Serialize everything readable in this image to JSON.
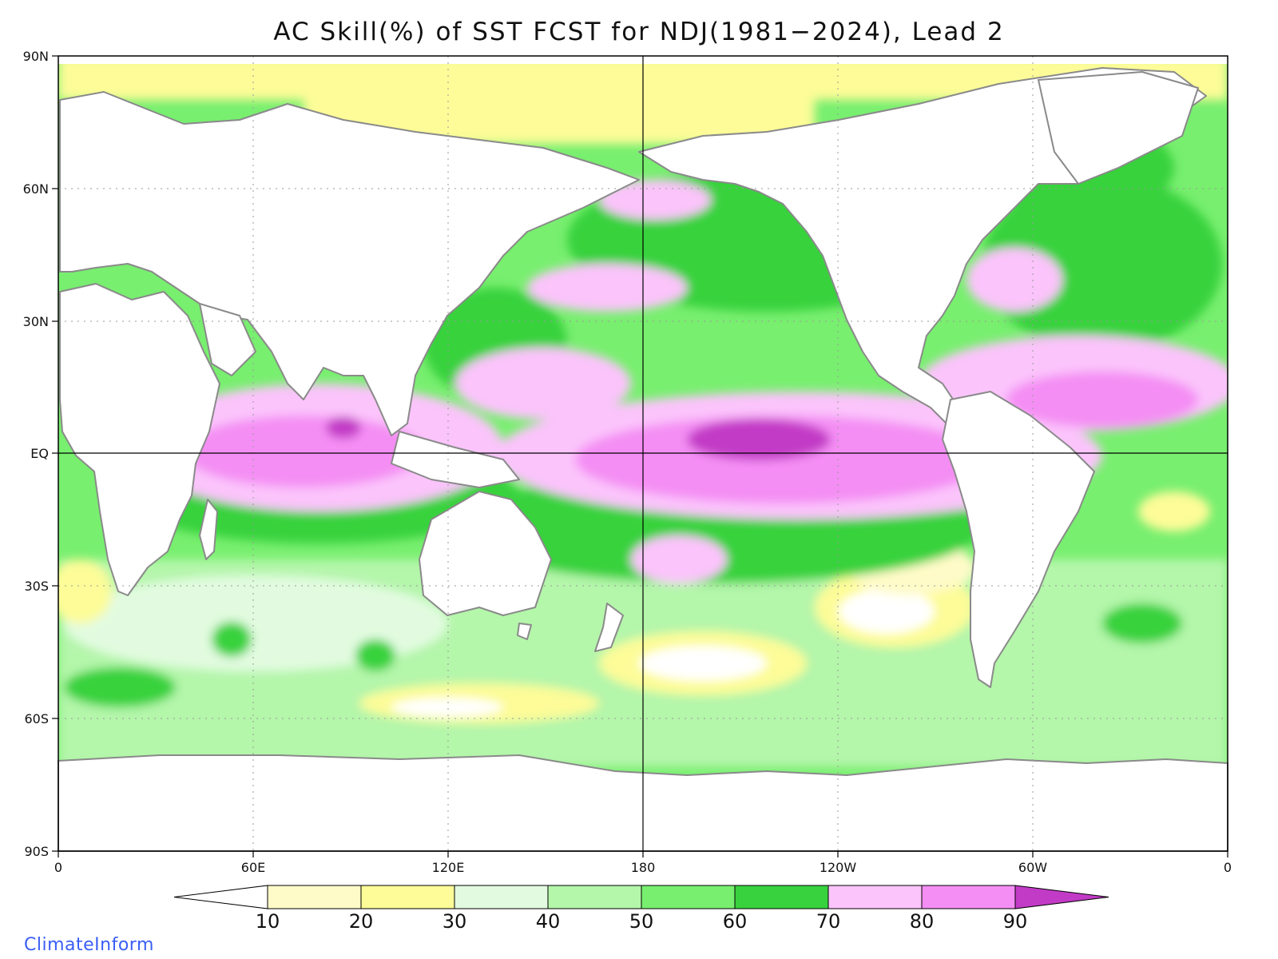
{
  "title": "AC Skill(%) of SST FCST for NDJ(1981−2024), Lead 2",
  "credit": "ClimateInform",
  "lat_labels": [
    "90N",
    "60N",
    "30N",
    "EQ",
    "30S",
    "60S",
    "90S"
  ],
  "lon_labels": [
    "0",
    "60E",
    "120E",
    "180",
    "120W",
    "60W",
    "0"
  ],
  "colorbar": {
    "labels": [
      "10",
      "20",
      "30",
      "40",
      "50",
      "60",
      "70",
      "80",
      "90"
    ],
    "colors": [
      "#ffffff",
      "#fffbc8",
      "#fdfc98",
      "#e2fbe0",
      "#b4f6aa",
      "#78ef6f",
      "#37d23d",
      "#fbc4fb",
      "#f48ef4",
      "#c23bc6"
    ]
  },
  "map": {
    "land_color": "#ffffff",
    "coastline_color": "#8a8a8a",
    "grid": "dotted every 30 degrees",
    "equator_and_dateline": "solid"
  }
}
